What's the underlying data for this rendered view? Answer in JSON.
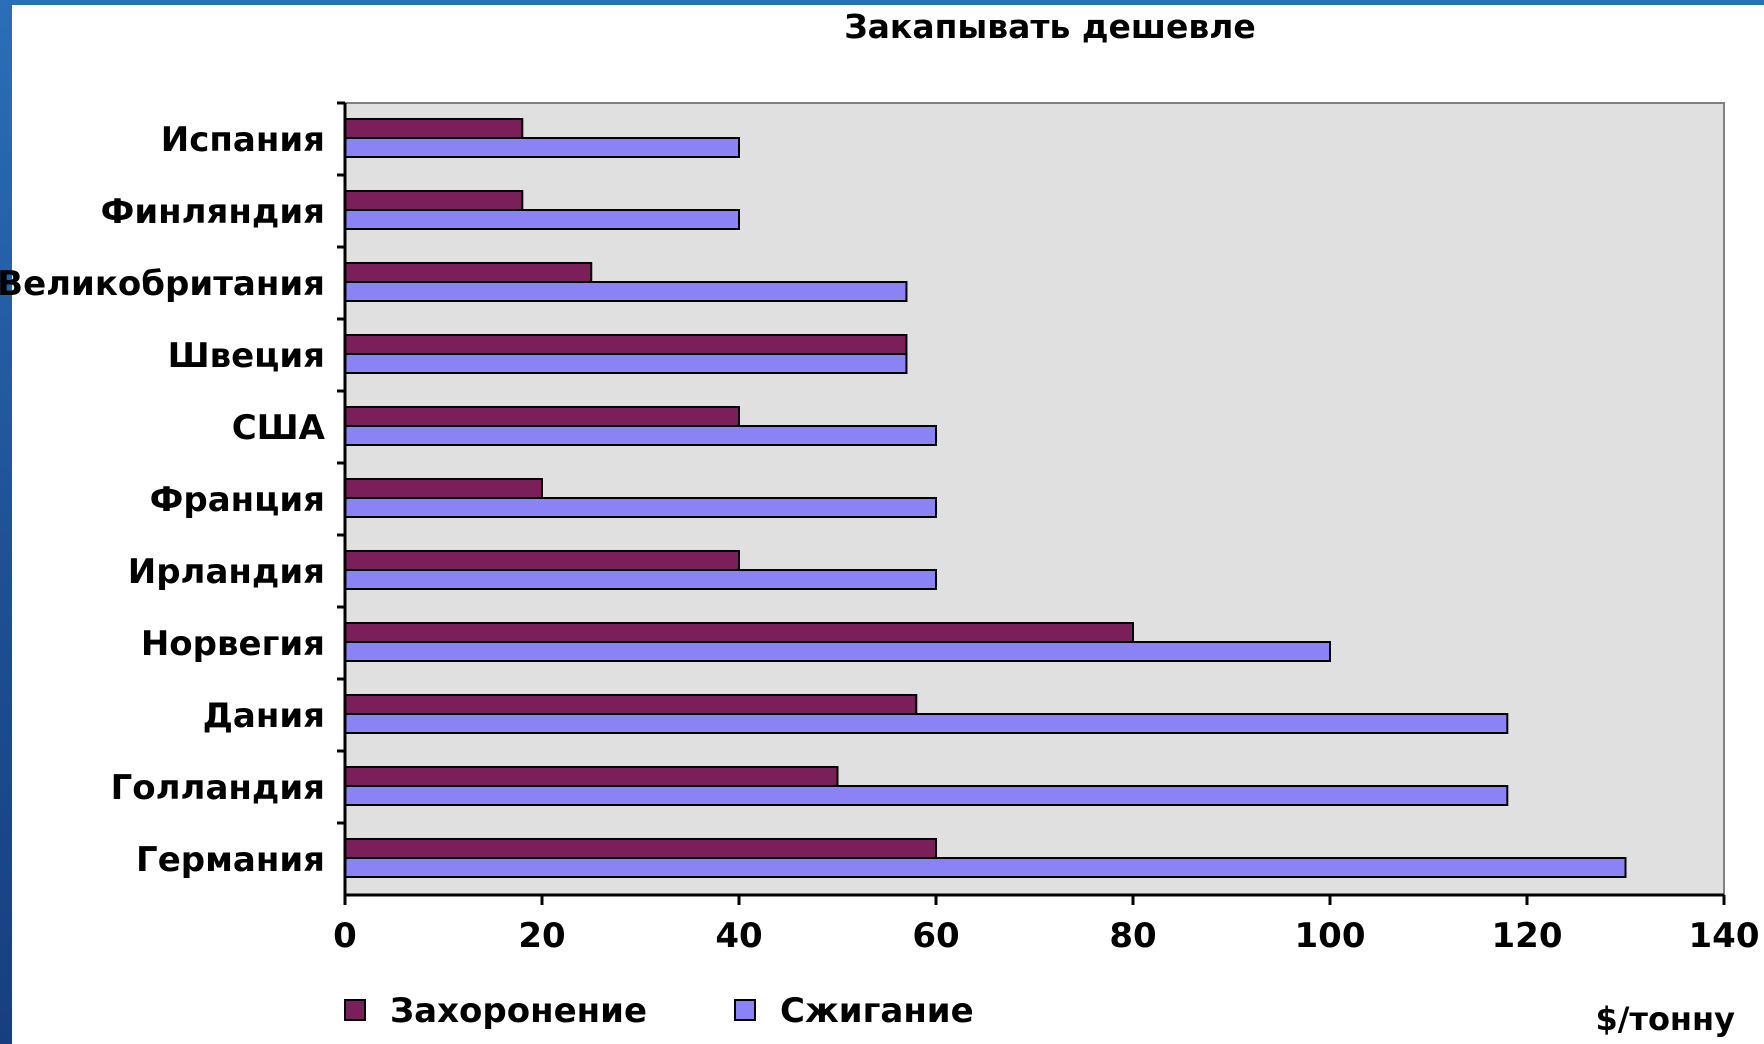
{
  "chart_data": {
    "type": "bar",
    "orientation": "horizontal",
    "title": "Закапывать дешевле",
    "xlabel": "$/тонну",
    "ylabel": "",
    "xlim": [
      0,
      140
    ],
    "x_ticks": [
      "0",
      "20",
      "40",
      "60",
      "80",
      "100",
      "120",
      "140"
    ],
    "categories": [
      "Испания",
      "Финляндия",
      "Великобритания",
      "Швеция",
      "США",
      "Франция",
      "Ирландия",
      "Норвегия",
      "Дания",
      "Голландия",
      "Германия"
    ],
    "series": [
      {
        "name": "Захоронение",
        "color": "#7b1f5a",
        "values": [
          18,
          18,
          25,
          57,
          40,
          20,
          40,
          80,
          58,
          50,
          60
        ]
      },
      {
        "name": "Сжигание",
        "color": "#8a82f5",
        "values": [
          40,
          40,
          57,
          57,
          60,
          60,
          60,
          100,
          118,
          118,
          130
        ]
      }
    ],
    "plot_background": "#e0e0e0",
    "grid": false,
    "legend_position": "bottom-left"
  }
}
